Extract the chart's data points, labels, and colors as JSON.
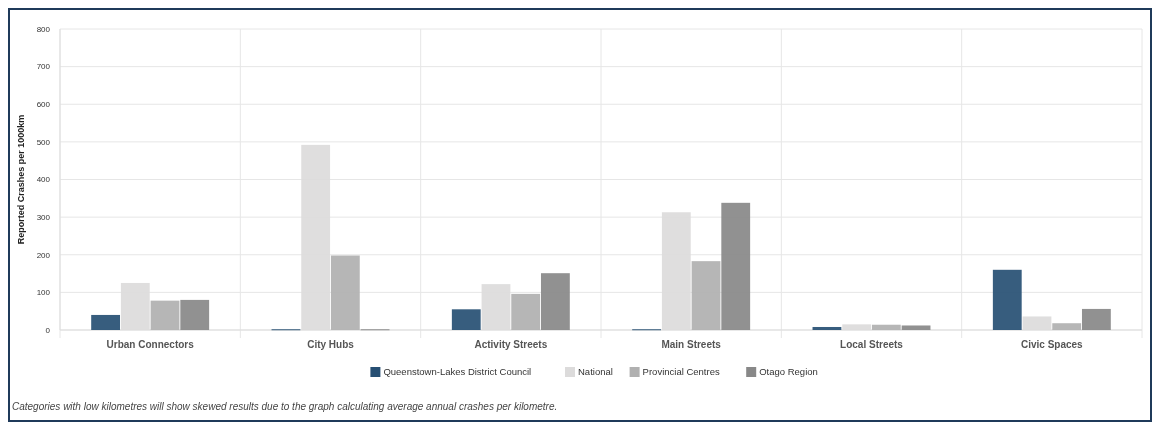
{
  "chart_data": {
    "type": "bar",
    "ylabel": "Reported Crashes per 1000km",
    "categories": [
      "Urban Connectors",
      "City Hubs",
      "Activity Streets",
      "Main Streets",
      "Local Streets",
      "Civic Spaces"
    ],
    "series": [
      {
        "name": "Queenstown-Lakes District Council",
        "color": "#264f73",
        "values": [
          40,
          2,
          55,
          2,
          8,
          160
        ]
      },
      {
        "name": "National",
        "color": "#dcdbdb",
        "values": [
          125,
          492,
          122,
          313,
          15,
          36
        ]
      },
      {
        "name": "Provincial Centres",
        "color": "#b0b0b0",
        "values": [
          78,
          198,
          96,
          183,
          14,
          18
        ]
      },
      {
        "name": "Otago Region",
        "color": "#888888",
        "values": [
          80,
          2,
          151,
          338,
          12,
          56
        ]
      }
    ],
    "ylim": [
      0,
      800
    ],
    "yticks": [
      0,
      100,
      200,
      300,
      400,
      500,
      600,
      700,
      800
    ],
    "grid": true,
    "legend": "bottom",
    "annotations": [
      "Categories with low kilometres will show skewed results due to the graph calculating average annual crashes per kilometre."
    ]
  }
}
